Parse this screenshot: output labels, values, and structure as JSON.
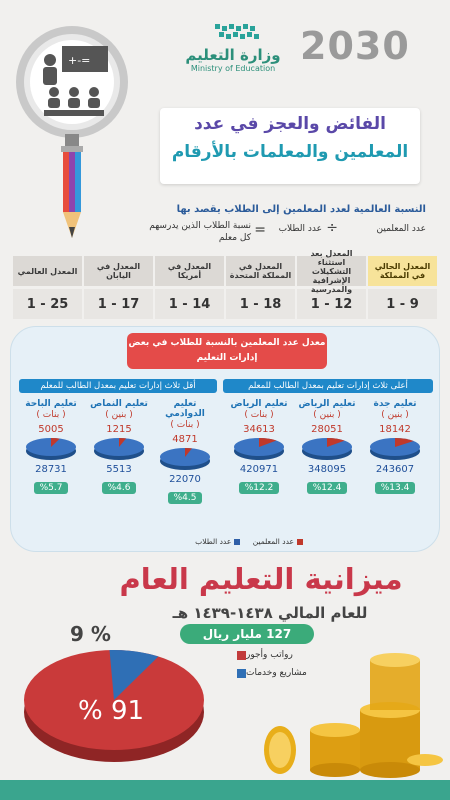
{
  "header": {
    "vision_logo": "2030",
    "moe_logo_ar": "وزارة التعليم",
    "moe_logo_en": "Ministry of Education"
  },
  "title": {
    "line1": "الفائض والعجز في عدد",
    "line2": "المعلمين والمعلمات بالأرقام"
  },
  "formula": {
    "heading": "النسبة العالمية لعدد المعلمين إلى الطلاب يقصد بها",
    "left_term": "عدد المعلمين",
    "operator": "÷",
    "middle_term": "عدد الطلاب",
    "equals": "=",
    "result": "نسبة الطلاب الذين يدرسهم كل معلم"
  },
  "comparison": [
    {
      "label": "المعدل الحالي في المملكة",
      "value": "1 - 9"
    },
    {
      "label": "المعدل بعد استثناء التشكيلات الإشرافية والمدرسية",
      "value": "1 - 12"
    },
    {
      "label": "المعدل في المملكة المتحدة",
      "value": "1 - 18"
    },
    {
      "label": "المعدل في أمريكا",
      "value": "1 - 14"
    },
    {
      "label": "المعدل في اليابان",
      "value": "1 - 17"
    },
    {
      "label": "المعدل العالمي",
      "value": "1 - 25"
    }
  ],
  "ratio_panel": {
    "title": "معدل عدد المعلمين بالنسبة للطلاب في بعض إدارات التعليم",
    "top_group": "أعلى ثلاث إدارات تعليم بمعدل الطالب للمعلم",
    "low_group": "أقل ثلاث إدارات تعليم بمعدل الطالب للمعلم",
    "regions": [
      {
        "name": "تعليم جدة",
        "gender": "( بنين )",
        "teachers": "18142",
        "students": "243607",
        "pct": "%13.4",
        "teacher_share": 0.134
      },
      {
        "name": "تعليم الرياض",
        "gender": "( بنين )",
        "teachers": "28051",
        "students": "348095",
        "pct": "%12.4",
        "teacher_share": 0.124
      },
      {
        "name": "تعليم الرياض",
        "gender": "( بنات )",
        "teachers": "34613",
        "students": "420971",
        "pct": "%12.2",
        "teacher_share": 0.122
      },
      {
        "name": "تعليم الدوادمي",
        "gender": "( بنات )",
        "teachers": "4871",
        "students": "22070",
        "pct": "%4.5",
        "teacher_share": 0.045
      },
      {
        "name": "تعليم النماص",
        "gender": "( بنين )",
        "teachers": "1215",
        "students": "5513",
        "pct": "%4.6",
        "teacher_share": 0.046
      },
      {
        "name": "تعليم الباحة",
        "gender": "( بنات )",
        "teachers": "5005",
        "students": "28731",
        "pct": "%5.7",
        "teacher_share": 0.057
      }
    ],
    "legend": {
      "teachers": "عدد المعلمين",
      "students": "عدد الطلاب",
      "teachers_color": "#c0392b",
      "students_color": "#2f5fa8"
    }
  },
  "budget": {
    "title": "ميزانية التعليم العام",
    "year": "للعام المالي ١٤٣٨-١٤٣٩ هـ",
    "amount": "127 مليار ريال",
    "pct_small": "9 %",
    "pct_large": "% 91",
    "legend": [
      {
        "label": "رواتب وأجور",
        "color": "#c23b3b"
      },
      {
        "label": "مشاريع وخدمات",
        "color": "#2f6fb5"
      }
    ],
    "chart_data": {
      "type": "pie",
      "categories": [
        "رواتب وأجور",
        "مشاريع وخدمات"
      ],
      "values": [
        91,
        9
      ]
    }
  }
}
